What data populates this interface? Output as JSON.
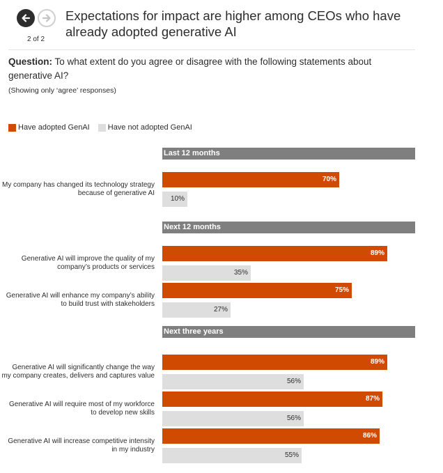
{
  "header": {
    "title": "Expectations for impact are higher among CEOs who have already adopted generative AI",
    "pager": "2 of 2",
    "prev_icon": "arrow-left-icon",
    "next_icon": "arrow-right-icon"
  },
  "question": {
    "label": "Question:",
    "text": "To what extent do you agree or disagree with the following statements about generative AI?",
    "note": "(Showing only ‘agree’ responses)"
  },
  "colors": {
    "adopted": "#d04a02",
    "not_adopted": "#dedede",
    "group_header": "#7f7f7f"
  },
  "chart_data": {
    "type": "bar",
    "orientation": "horizontal",
    "unit": "%",
    "xlim": [
      0,
      100
    ],
    "legend": {
      "placement": "top-left",
      "entries": [
        "Have adopted GenAI",
        "Have not adopted GenAI"
      ]
    },
    "series": [
      {
        "name": "Have adopted GenAI",
        "values": [
          70,
          89,
          75,
          89,
          87,
          86
        ]
      },
      {
        "name": "Have not adopted GenAI",
        "values": [
          10,
          35,
          27,
          56,
          56,
          55
        ]
      }
    ],
    "groups": [
      {
        "label": "Last 12 months",
        "statements": [
          {
            "label": "My company has changed its technology strategy because of generative AI",
            "adopted": 70,
            "not_adopted": 10
          }
        ]
      },
      {
        "label": "Next 12 months",
        "statements": [
          {
            "label": "Generative AI will improve the quality of my company’s products or services",
            "adopted": 89,
            "not_adopted": 35
          },
          {
            "label": "Generative AI will enhance my company’s ability to build trust with stakeholders",
            "adopted": 75,
            "not_adopted": 27
          }
        ]
      },
      {
        "label": "Next three years",
        "statements": [
          {
            "label": "Generative AI will significantly change the way my company creates, delivers and captures value",
            "adopted": 89,
            "not_adopted": 56
          },
          {
            "label": "Generative AI will require most of my workforce to develop new skills",
            "adopted": 87,
            "not_adopted": 56
          },
          {
            "label": "Generative AI will increase competitive intensity in my industry",
            "adopted": 86,
            "not_adopted": 55
          }
        ]
      }
    ]
  }
}
